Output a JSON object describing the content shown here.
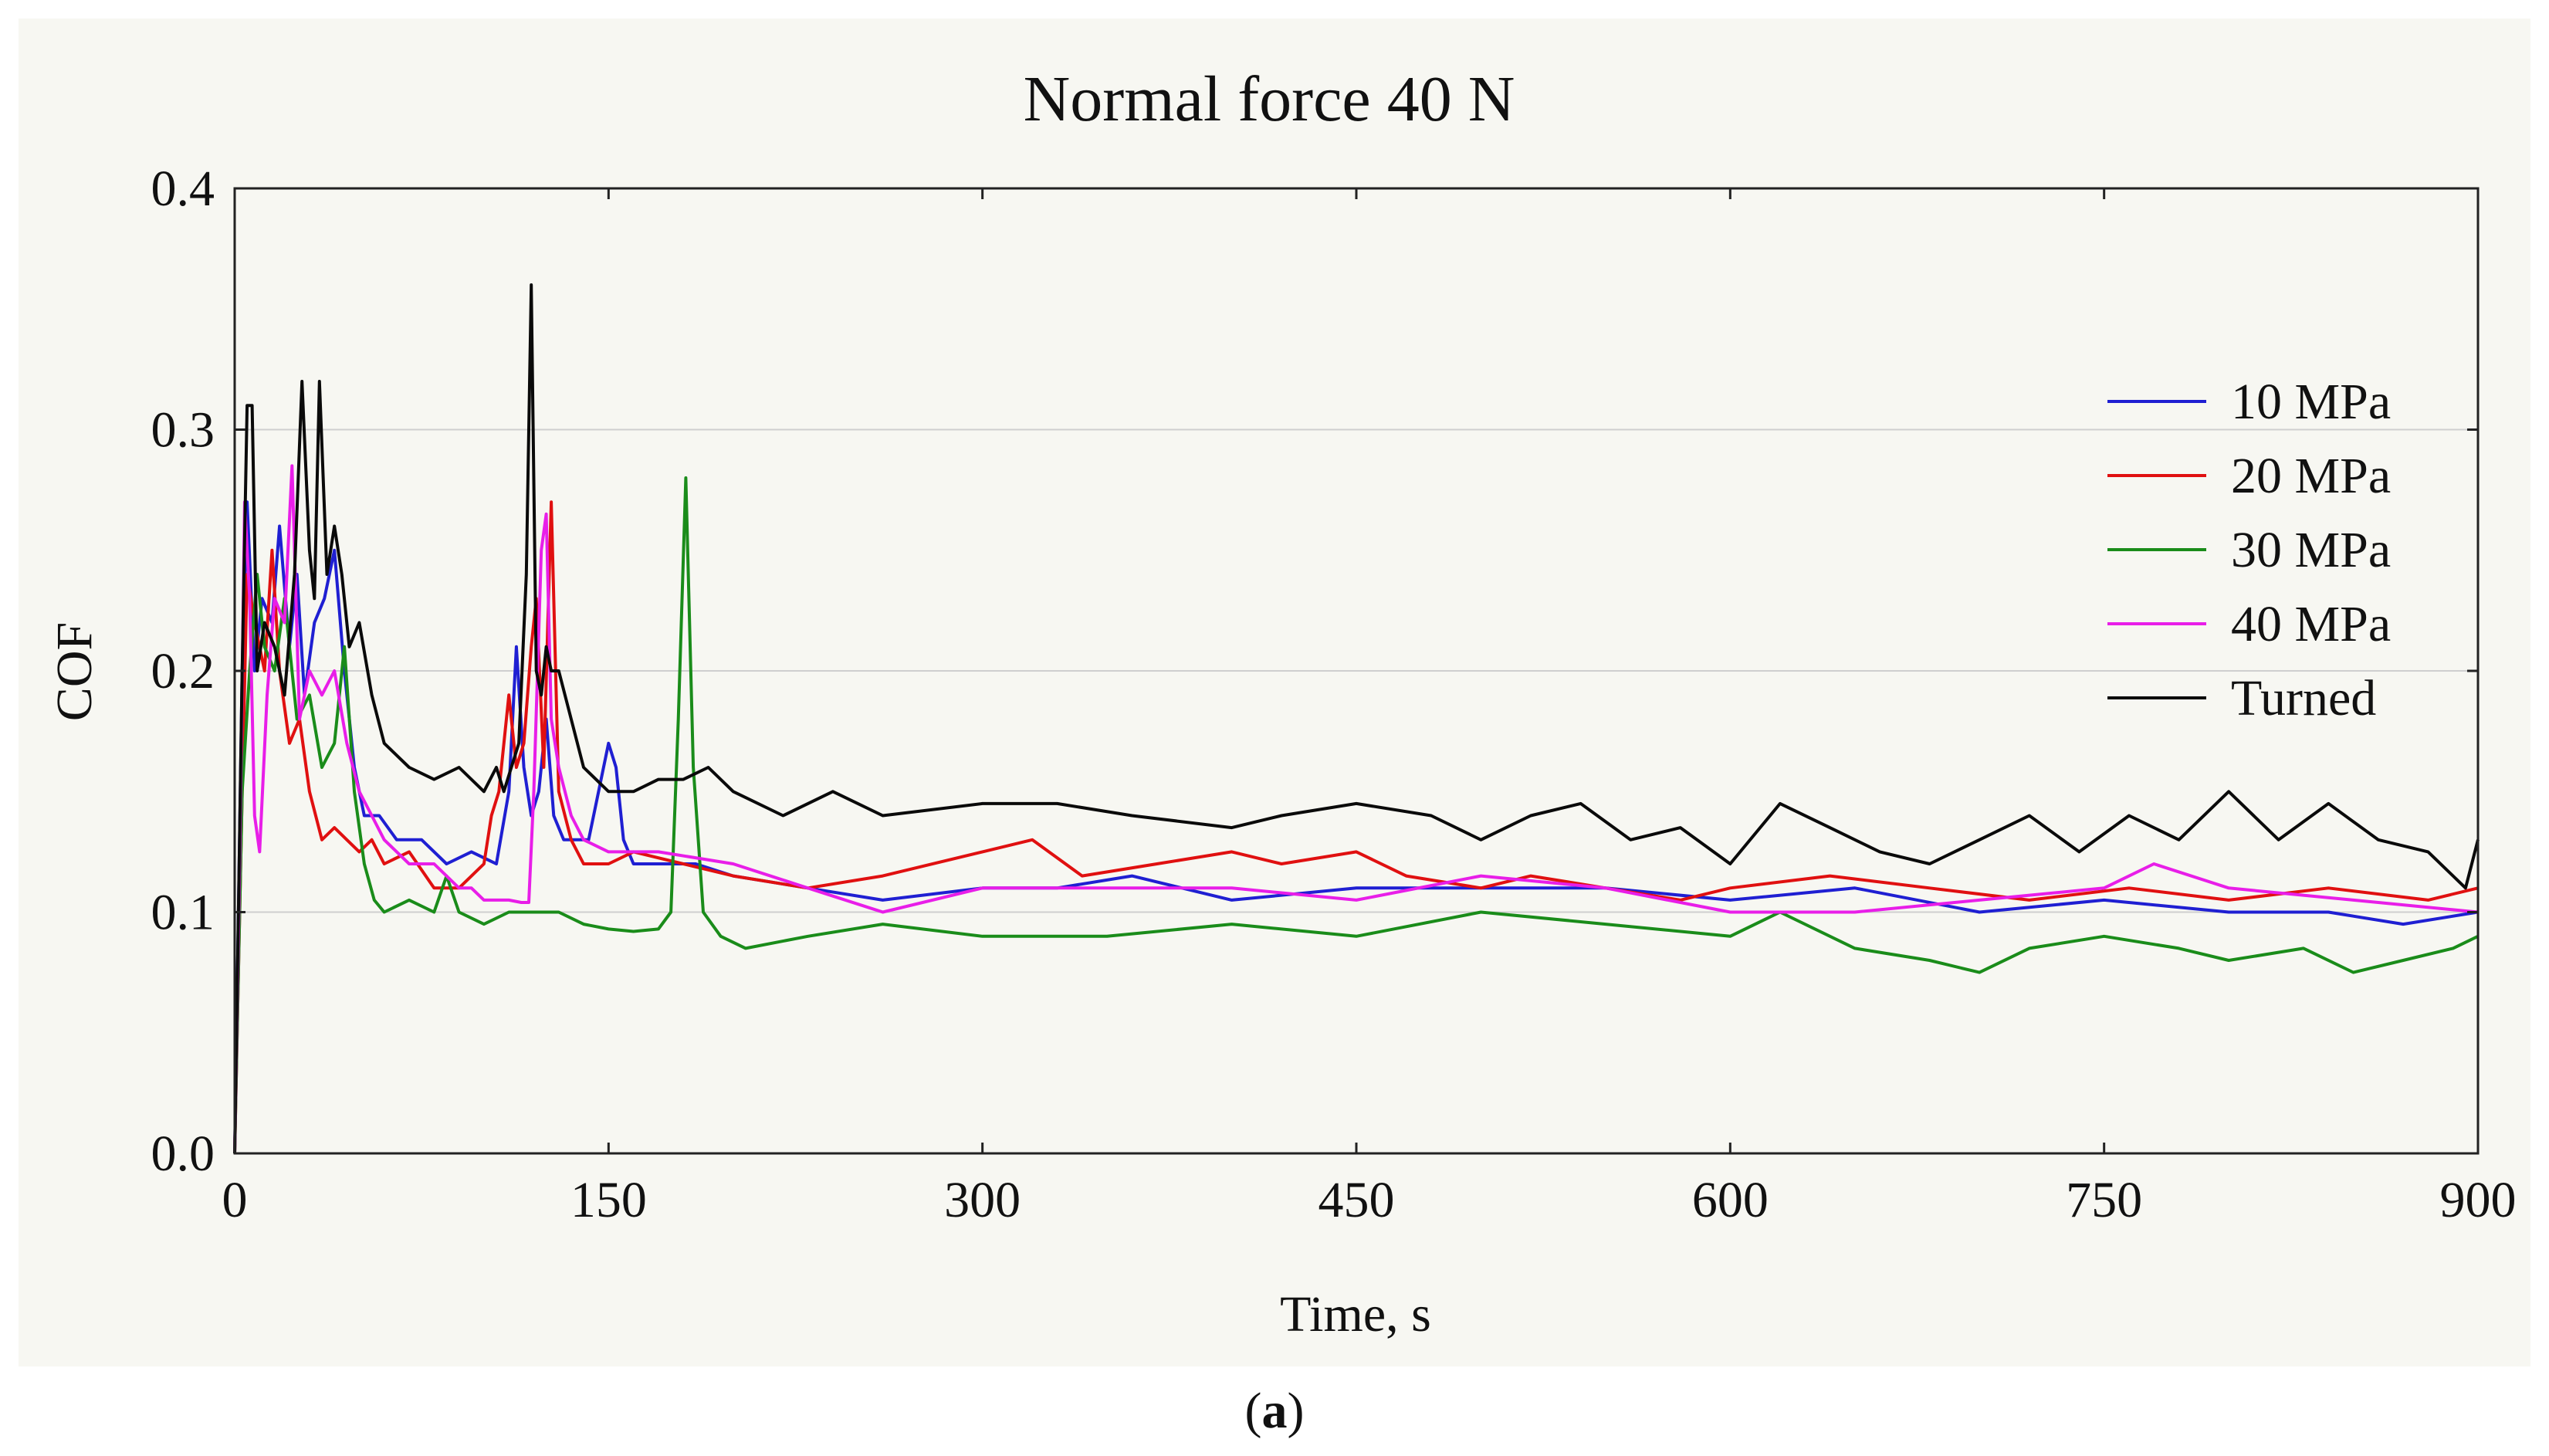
{
  "caption": {
    "open": "(",
    "letter": "a",
    "close": ")"
  },
  "chart_data": {
    "type": "line",
    "title": "Normal force 40 N",
    "xlabel": "Time, s",
    "ylabel": "COF",
    "xlim": [
      0,
      900
    ],
    "ylim": [
      0.0,
      0.4
    ],
    "xticks": [
      0,
      150,
      300,
      450,
      600,
      750,
      900
    ],
    "xtick_labels": [
      "0",
      "150",
      "300",
      "450",
      "600",
      "750",
      "900"
    ],
    "yticks": [
      0.0,
      0.1,
      0.2,
      0.3,
      0.4
    ],
    "ytick_labels": [
      "0.0",
      "0.1",
      "0.2",
      "0.3",
      "0.4"
    ],
    "grid": "horizontal",
    "legend_position": "top-right",
    "series": [
      {
        "name": "10 MPa",
        "color": "#1f1fd2",
        "x": [
          0,
          3,
          5,
          8,
          11,
          15,
          18,
          22,
          25,
          28,
          32,
          36,
          40,
          44,
          48,
          52,
          58,
          65,
          75,
          85,
          95,
          105,
          110,
          113,
          116,
          119,
          122,
          125,
          128,
          132,
          137,
          142,
          150,
          153,
          156,
          160,
          170,
          185,
          200,
          230,
          260,
          300,
          330,
          360,
          400,
          450,
          500,
          550,
          600,
          650,
          700,
          750,
          800,
          840,
          870,
          900
        ],
        "y": [
          0.0,
          0.2,
          0.27,
          0.2,
          0.23,
          0.22,
          0.26,
          0.21,
          0.24,
          0.19,
          0.22,
          0.23,
          0.25,
          0.2,
          0.16,
          0.14,
          0.14,
          0.13,
          0.13,
          0.12,
          0.125,
          0.12,
          0.15,
          0.21,
          0.16,
          0.14,
          0.15,
          0.18,
          0.14,
          0.13,
          0.13,
          0.13,
          0.17,
          0.16,
          0.13,
          0.12,
          0.12,
          0.12,
          0.115,
          0.11,
          0.105,
          0.11,
          0.11,
          0.115,
          0.105,
          0.11,
          0.11,
          0.11,
          0.105,
          0.11,
          0.1,
          0.105,
          0.1,
          0.1,
          0.095,
          0.1
        ]
      },
      {
        "name": "20 MPa",
        "color": "#e01010",
        "x": [
          0,
          3,
          5,
          8,
          12,
          15,
          18,
          22,
          26,
          30,
          35,
          40,
          45,
          50,
          55,
          60,
          70,
          80,
          90,
          100,
          103,
          106,
          110,
          113,
          116,
          119,
          121,
          124,
          127,
          130,
          135,
          140,
          150,
          160,
          180,
          200,
          230,
          260,
          300,
          320,
          340,
          370,
          400,
          420,
          450,
          470,
          500,
          520,
          550,
          580,
          600,
          640,
          680,
          720,
          760,
          800,
          840,
          880,
          900
        ],
        "y": [
          0.0,
          0.15,
          0.24,
          0.22,
          0.2,
          0.25,
          0.2,
          0.17,
          0.18,
          0.15,
          0.13,
          0.135,
          0.13,
          0.125,
          0.13,
          0.12,
          0.125,
          0.11,
          0.11,
          0.12,
          0.14,
          0.15,
          0.19,
          0.16,
          0.17,
          0.21,
          0.23,
          0.16,
          0.27,
          0.15,
          0.13,
          0.12,
          0.12,
          0.125,
          0.12,
          0.115,
          0.11,
          0.115,
          0.125,
          0.13,
          0.115,
          0.12,
          0.125,
          0.12,
          0.125,
          0.115,
          0.11,
          0.115,
          0.11,
          0.105,
          0.11,
          0.115,
          0.11,
          0.105,
          0.11,
          0.105,
          0.11,
          0.105,
          0.11
        ]
      },
      {
        "name": "30 MPa",
        "color": "#1a8c1a",
        "x": [
          0,
          3,
          6,
          9,
          12,
          16,
          20,
          25,
          30,
          35,
          40,
          44,
          48,
          52,
          56,
          60,
          70,
          80,
          85,
          90,
          100,
          110,
          120,
          130,
          140,
          150,
          160,
          170,
          175,
          178,
          181,
          184,
          188,
          195,
          205,
          230,
          260,
          300,
          350,
          400,
          450,
          500,
          550,
          600,
          620,
          650,
          680,
          700,
          720,
          750,
          780,
          800,
          830,
          850,
          870,
          890,
          900
        ],
        "y": [
          0.0,
          0.15,
          0.2,
          0.24,
          0.21,
          0.2,
          0.23,
          0.18,
          0.19,
          0.16,
          0.17,
          0.21,
          0.15,
          0.12,
          0.105,
          0.1,
          0.105,
          0.1,
          0.115,
          0.1,
          0.095,
          0.1,
          0.1,
          0.1,
          0.095,
          0.093,
          0.092,
          0.093,
          0.1,
          0.18,
          0.28,
          0.16,
          0.1,
          0.09,
          0.085,
          0.09,
          0.095,
          0.09,
          0.09,
          0.095,
          0.09,
          0.1,
          0.095,
          0.09,
          0.1,
          0.085,
          0.08,
          0.075,
          0.085,
          0.09,
          0.085,
          0.08,
          0.085,
          0.075,
          0.08,
          0.085,
          0.09
        ]
      },
      {
        "name": "40 MPa",
        "color": "#e81ee8",
        "x": [
          0,
          2,
          4,
          6,
          8,
          10,
          13,
          16,
          20,
          23,
          26,
          30,
          35,
          40,
          45,
          50,
          55,
          60,
          70,
          80,
          90,
          95,
          100,
          110,
          115,
          118,
          120,
          123,
          125,
          127,
          130,
          135,
          140,
          150,
          170,
          200,
          230,
          260,
          300,
          350,
          400,
          450,
          500,
          550,
          600,
          650,
          700,
          750,
          770,
          800,
          850,
          900
        ],
        "y": [
          0.0,
          0.12,
          0.27,
          0.23,
          0.14,
          0.125,
          0.19,
          0.23,
          0.22,
          0.285,
          0.18,
          0.2,
          0.19,
          0.2,
          0.17,
          0.15,
          0.14,
          0.13,
          0.12,
          0.12,
          0.11,
          0.11,
          0.105,
          0.105,
          0.104,
          0.104,
          0.15,
          0.25,
          0.265,
          0.18,
          0.16,
          0.14,
          0.13,
          0.125,
          0.125,
          0.12,
          0.11,
          0.1,
          0.11,
          0.11,
          0.11,
          0.105,
          0.115,
          0.11,
          0.1,
          0.1,
          0.105,
          0.11,
          0.12,
          0.11,
          0.105,
          0.1
        ]
      },
      {
        "name": "Turned",
        "color": "#0a0a0a",
        "x": [
          0,
          3,
          5,
          7,
          9,
          12,
          16,
          20,
          24,
          27,
          30,
          32,
          34,
          37,
          40,
          43,
          46,
          50,
          55,
          60,
          70,
          80,
          90,
          100,
          105,
          108,
          111,
          114,
          117,
          119,
          121,
          123,
          125,
          127,
          130,
          135,
          140,
          150,
          160,
          170,
          180,
          190,
          200,
          220,
          240,
          260,
          300,
          330,
          360,
          400,
          420,
          450,
          480,
          500,
          520,
          540,
          560,
          580,
          600,
          620,
          640,
          660,
          680,
          700,
          720,
          740,
          760,
          780,
          800,
          820,
          840,
          860,
          880,
          895,
          900
        ],
        "y": [
          0.0,
          0.2,
          0.31,
          0.31,
          0.2,
          0.22,
          0.21,
          0.19,
          0.24,
          0.32,
          0.25,
          0.23,
          0.32,
          0.24,
          0.26,
          0.24,
          0.21,
          0.22,
          0.19,
          0.17,
          0.16,
          0.155,
          0.16,
          0.15,
          0.16,
          0.15,
          0.16,
          0.17,
          0.24,
          0.36,
          0.2,
          0.19,
          0.21,
          0.2,
          0.2,
          0.18,
          0.16,
          0.15,
          0.15,
          0.155,
          0.155,
          0.16,
          0.15,
          0.14,
          0.15,
          0.14,
          0.145,
          0.145,
          0.14,
          0.135,
          0.14,
          0.145,
          0.14,
          0.13,
          0.14,
          0.145,
          0.13,
          0.135,
          0.12,
          0.145,
          0.135,
          0.125,
          0.12,
          0.13,
          0.14,
          0.125,
          0.14,
          0.13,
          0.15,
          0.13,
          0.145,
          0.13,
          0.125,
          0.11,
          0.13
        ]
      }
    ]
  }
}
